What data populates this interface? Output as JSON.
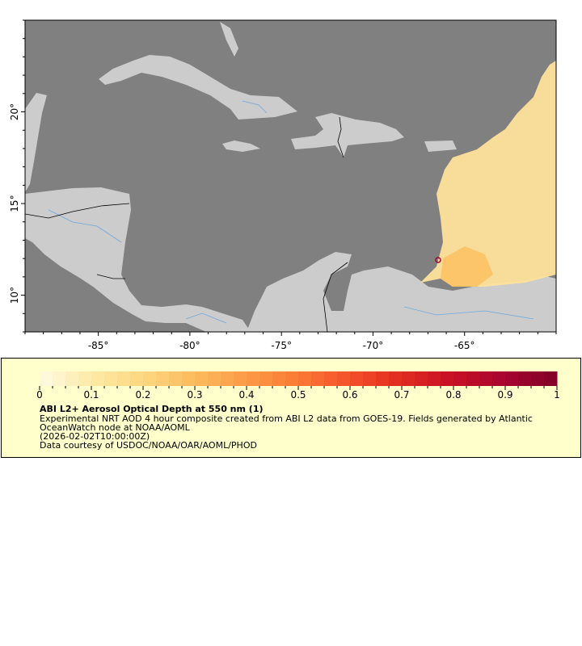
{
  "map": {
    "lon_range": [
      -89,
      -60
    ],
    "lat_range": [
      8,
      25
    ],
    "lon_ticks": [
      -85,
      -80,
      -75,
      -70,
      -65
    ],
    "lon_tick_labels": [
      "-85°",
      "-80°",
      "-75°",
      "-70°",
      "-65°"
    ],
    "lat_ticks": [
      10,
      15,
      20
    ],
    "lat_tick_labels": [
      "10°",
      "15°",
      "20°"
    ],
    "colors": {
      "ocean": "#808080",
      "land": "#cccccc",
      "rivers": "#6fa8dc",
      "borders": "#000000"
    }
  },
  "legend": {
    "title": "ABI L2+ Aerosol Optical Depth at 550 nm (1)",
    "line1": "Experimental NRT AOD 4 hour composite created from ABI L2 data from GOES-19. Fields generated by Atlantic",
    "line2": "OceanWatch node at NOAA/AOML",
    "time": "(2026-02-02T10:00:00Z)",
    "credit": "Data courtesy of USDOC/NOAA/OAR/AOML/PHOD",
    "colorbar_range": [
      0,
      1
    ],
    "colorbar_ticks": [
      0,
      0.1,
      0.2,
      0.3,
      0.4,
      0.5,
      0.6,
      0.7,
      0.8,
      0.9,
      1
    ],
    "colorbar_tick_labels": [
      "0",
      "0.1",
      "0.2",
      "0.3",
      "0.4",
      "0.5",
      "0.6",
      "0.7",
      "0.8",
      "0.9",
      "1"
    ],
    "colorscale": [
      "#fffbe3",
      "#fee9a6",
      "#fdd680",
      "#fdbb5e",
      "#fc9a46",
      "#fb7a35",
      "#f4502a",
      "#e02a20",
      "#c60f24",
      "#a70530",
      "#800026"
    ]
  }
}
